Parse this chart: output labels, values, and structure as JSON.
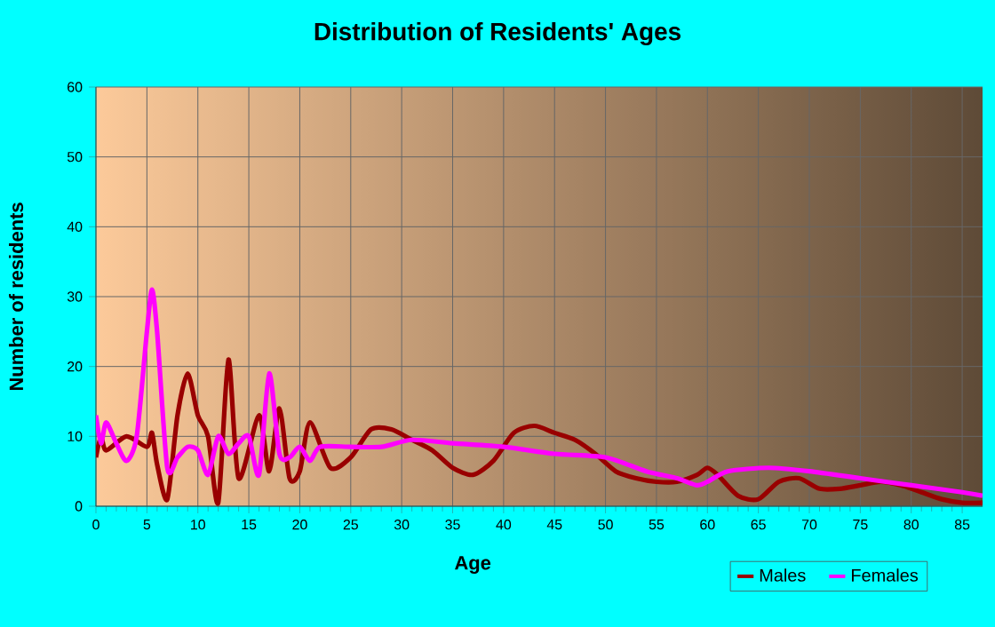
{
  "chart_data": {
    "type": "line",
    "title": "Distribution of Residents' Ages",
    "xlabel": "Age",
    "ylabel": "Number of residents",
    "xlim": [
      0,
      87
    ],
    "ylim": [
      0,
      60
    ],
    "xticks": [
      0,
      5,
      10,
      15,
      20,
      25,
      30,
      35,
      40,
      45,
      50,
      55,
      60,
      65,
      70,
      75,
      80,
      85
    ],
    "yticks": [
      0,
      10,
      20,
      30,
      40,
      50,
      60
    ],
    "grid": true,
    "legend": "bottom right",
    "line_style": "solid",
    "series": [
      {
        "name": "Males",
        "color": "#990000",
        "x": [
          0,
          0.5,
          1,
          3,
          5,
          5.5,
          6,
          7,
          8,
          9,
          10,
          11,
          12,
          13,
          14,
          16,
          17,
          18,
          19,
          20,
          21,
          23,
          25,
          27,
          29,
          31,
          33,
          35,
          37,
          39,
          41,
          43,
          45,
          47,
          49,
          51,
          53,
          55,
          57,
          59,
          60,
          61,
          63,
          65,
          67,
          69,
          71,
          73,
          75,
          77,
          79,
          81,
          83,
          85,
          87
        ],
        "values": [
          7,
          10,
          8,
          10,
          8.5,
          10.5,
          6,
          1,
          13,
          19,
          13,
          10,
          0.5,
          21,
          4,
          13,
          5,
          14,
          4,
          5,
          12,
          5.5,
          7,
          11,
          11,
          9.5,
          8,
          5.5,
          4.5,
          6.5,
          10.5,
          11.5,
          10.5,
          9.5,
          7.5,
          5,
          4,
          3.5,
          3.5,
          4.5,
          5.5,
          4.5,
          1.5,
          1,
          3.5,
          4,
          2.5,
          2.5,
          3,
          3.5,
          3,
          2,
          1,
          0.5,
          0.5
        ]
      },
      {
        "name": "Females",
        "color": "#ff00ff",
        "x": [
          0,
          0.5,
          1,
          2,
          3,
          4,
          5,
          5.5,
          6,
          7,
          8,
          9,
          10,
          11,
          12,
          13,
          14,
          15,
          16,
          17,
          18,
          19,
          20,
          21,
          22,
          25,
          28,
          31,
          35,
          40,
          45,
          50,
          54,
          57,
          59,
          60,
          62,
          66,
          70,
          75,
          80,
          85,
          87
        ],
        "values": [
          13,
          9,
          12,
          9,
          6.5,
          10,
          25,
          31,
          25,
          5.5,
          7,
          8.5,
          8,
          4.5,
          10,
          7.5,
          9,
          10,
          4.5,
          19,
          7.5,
          7,
          8.5,
          6.5,
          8.5,
          8.5,
          8.5,
          9.5,
          9,
          8.5,
          7.5,
          7,
          5,
          4,
          3,
          3.5,
          5,
          5.5,
          5,
          4,
          3,
          2,
          1.5
        ]
      }
    ]
  }
}
